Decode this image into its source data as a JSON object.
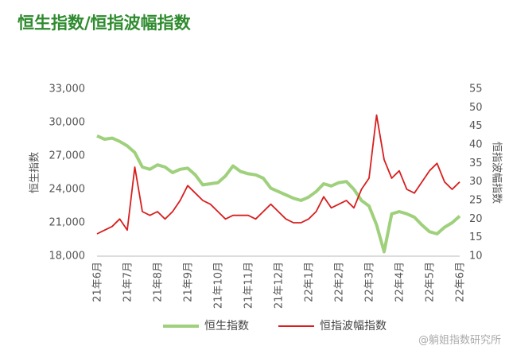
{
  "chart_data": {
    "type": "line",
    "title": "恒生指数/恒指波幅指数",
    "ylabel": "恒生指数",
    "y2label": "恒指波幅指数",
    "watermark": "@躺姐指数研究所",
    "categories": [
      "21年6月",
      null,
      null,
      null,
      "21年7月",
      null,
      null,
      null,
      "21年8月",
      null,
      null,
      null,
      "21年9月",
      null,
      null,
      null,
      "21年10月",
      null,
      null,
      null,
      "21年11月",
      null,
      null,
      null,
      "21年12月",
      null,
      null,
      null,
      "22年1月",
      null,
      null,
      null,
      "22年2月",
      null,
      null,
      null,
      "22年3月",
      null,
      null,
      null,
      "22年4月",
      null,
      null,
      null,
      "22年5月",
      null,
      null,
      null,
      "22年6月"
    ],
    "series": [
      {
        "name": "恒生指数",
        "color": "#9fd07c",
        "values": [
          28800,
          28500,
          28600,
          28300,
          27900,
          27300,
          26000,
          25800,
          26200,
          26000,
          25500,
          25800,
          25900,
          25300,
          24400,
          24500,
          24600,
          25200,
          26100,
          25600,
          25400,
          25300,
          25000,
          24100,
          23800,
          23500,
          23200,
          23000,
          23300,
          23800,
          24500,
          24300,
          24600,
          24700,
          24000,
          23000,
          22500,
          20800,
          18400,
          21800,
          22000,
          21800,
          21500,
          20800,
          20200,
          20000,
          20600,
          21000,
          21600
        ]
      },
      {
        "name": "恒指波幅指数",
        "color": "#d81e1e",
        "axis": "y2",
        "values": [
          16,
          17,
          18,
          20,
          17,
          34,
          22,
          21,
          22,
          20,
          22,
          25,
          29,
          27,
          25,
          24,
          22,
          20,
          21,
          21,
          21,
          20,
          22,
          24,
          22,
          20,
          19,
          19,
          20,
          22,
          26,
          23,
          24,
          25,
          23,
          28,
          31,
          48,
          36,
          31,
          33,
          28,
          27,
          30,
          33,
          35,
          30,
          28,
          30
        ]
      }
    ],
    "ylim": [
      18000,
      33000
    ],
    "yticks": [
      {
        "value": 18000,
        "label": "18,000"
      },
      {
        "value": 21000,
        "label": "21,000"
      },
      {
        "value": 24000,
        "label": "24,000"
      },
      {
        "value": 27000,
        "label": "27,000"
      },
      {
        "value": 30000,
        "label": "30,000"
      },
      {
        "value": 33000,
        "label": "33,000"
      }
    ],
    "y2lim": [
      10,
      55
    ],
    "y2ticks": [
      10,
      15,
      20,
      25,
      30,
      35,
      40,
      45,
      50,
      55
    ]
  }
}
